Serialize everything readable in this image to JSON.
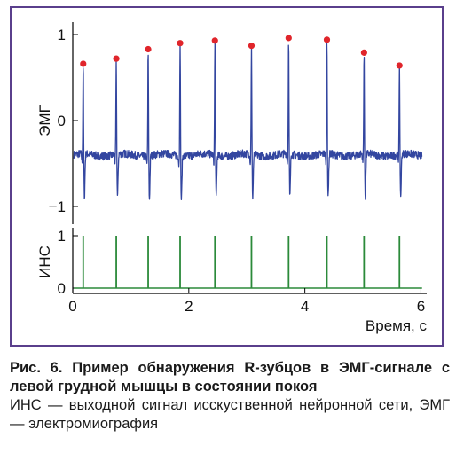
{
  "chart_data": [
    {
      "type": "line",
      "ylabel": "ЭМГ",
      "ylim": [
        -1,
        1
      ],
      "yticks": [
        "1",
        "0",
        "−1"
      ],
      "baseline": -0.4,
      "series": [
        {
          "values_note": "",
          "color": "#3346a0"
        }
      ],
      "r_peaks": {
        "marker_color": "#e0252b",
        "x": [
          0.18,
          0.75,
          1.3,
          1.85,
          2.45,
          3.08,
          3.72,
          4.38,
          5.02,
          5.63
        ],
        "y": [
          0.66,
          0.72,
          0.83,
          0.9,
          0.93,
          0.87,
          0.96,
          0.94,
          0.79,
          0.64
        ]
      },
      "xlim": [
        0,
        6.1
      ]
    },
    {
      "type": "line",
      "ylabel": "ИНС",
      "ylim": [
        0,
        1
      ],
      "yticks": [
        "1",
        "0"
      ],
      "series": [
        {
          "color": "#2b8a3a",
          "spike_x": [
            0.18,
            0.75,
            1.3,
            1.85,
            2.45,
            3.08,
            3.72,
            4.38,
            5.02,
            5.63
          ]
        }
      ],
      "xlabel": "Время, с",
      "xticks": [
        "0",
        "2",
        "4",
        "6"
      ],
      "xlim": [
        0,
        6.1
      ]
    }
  ],
  "caption": {
    "bold": "Рис. 6. Пример обнаружения R-зубцов в ЭМГ-сигнале с левой грудной мышцы в состоянии покоя",
    "regular": "ИНС — выходной сигнал исскуственной нейронной сети, ЭМГ — электромиография"
  }
}
